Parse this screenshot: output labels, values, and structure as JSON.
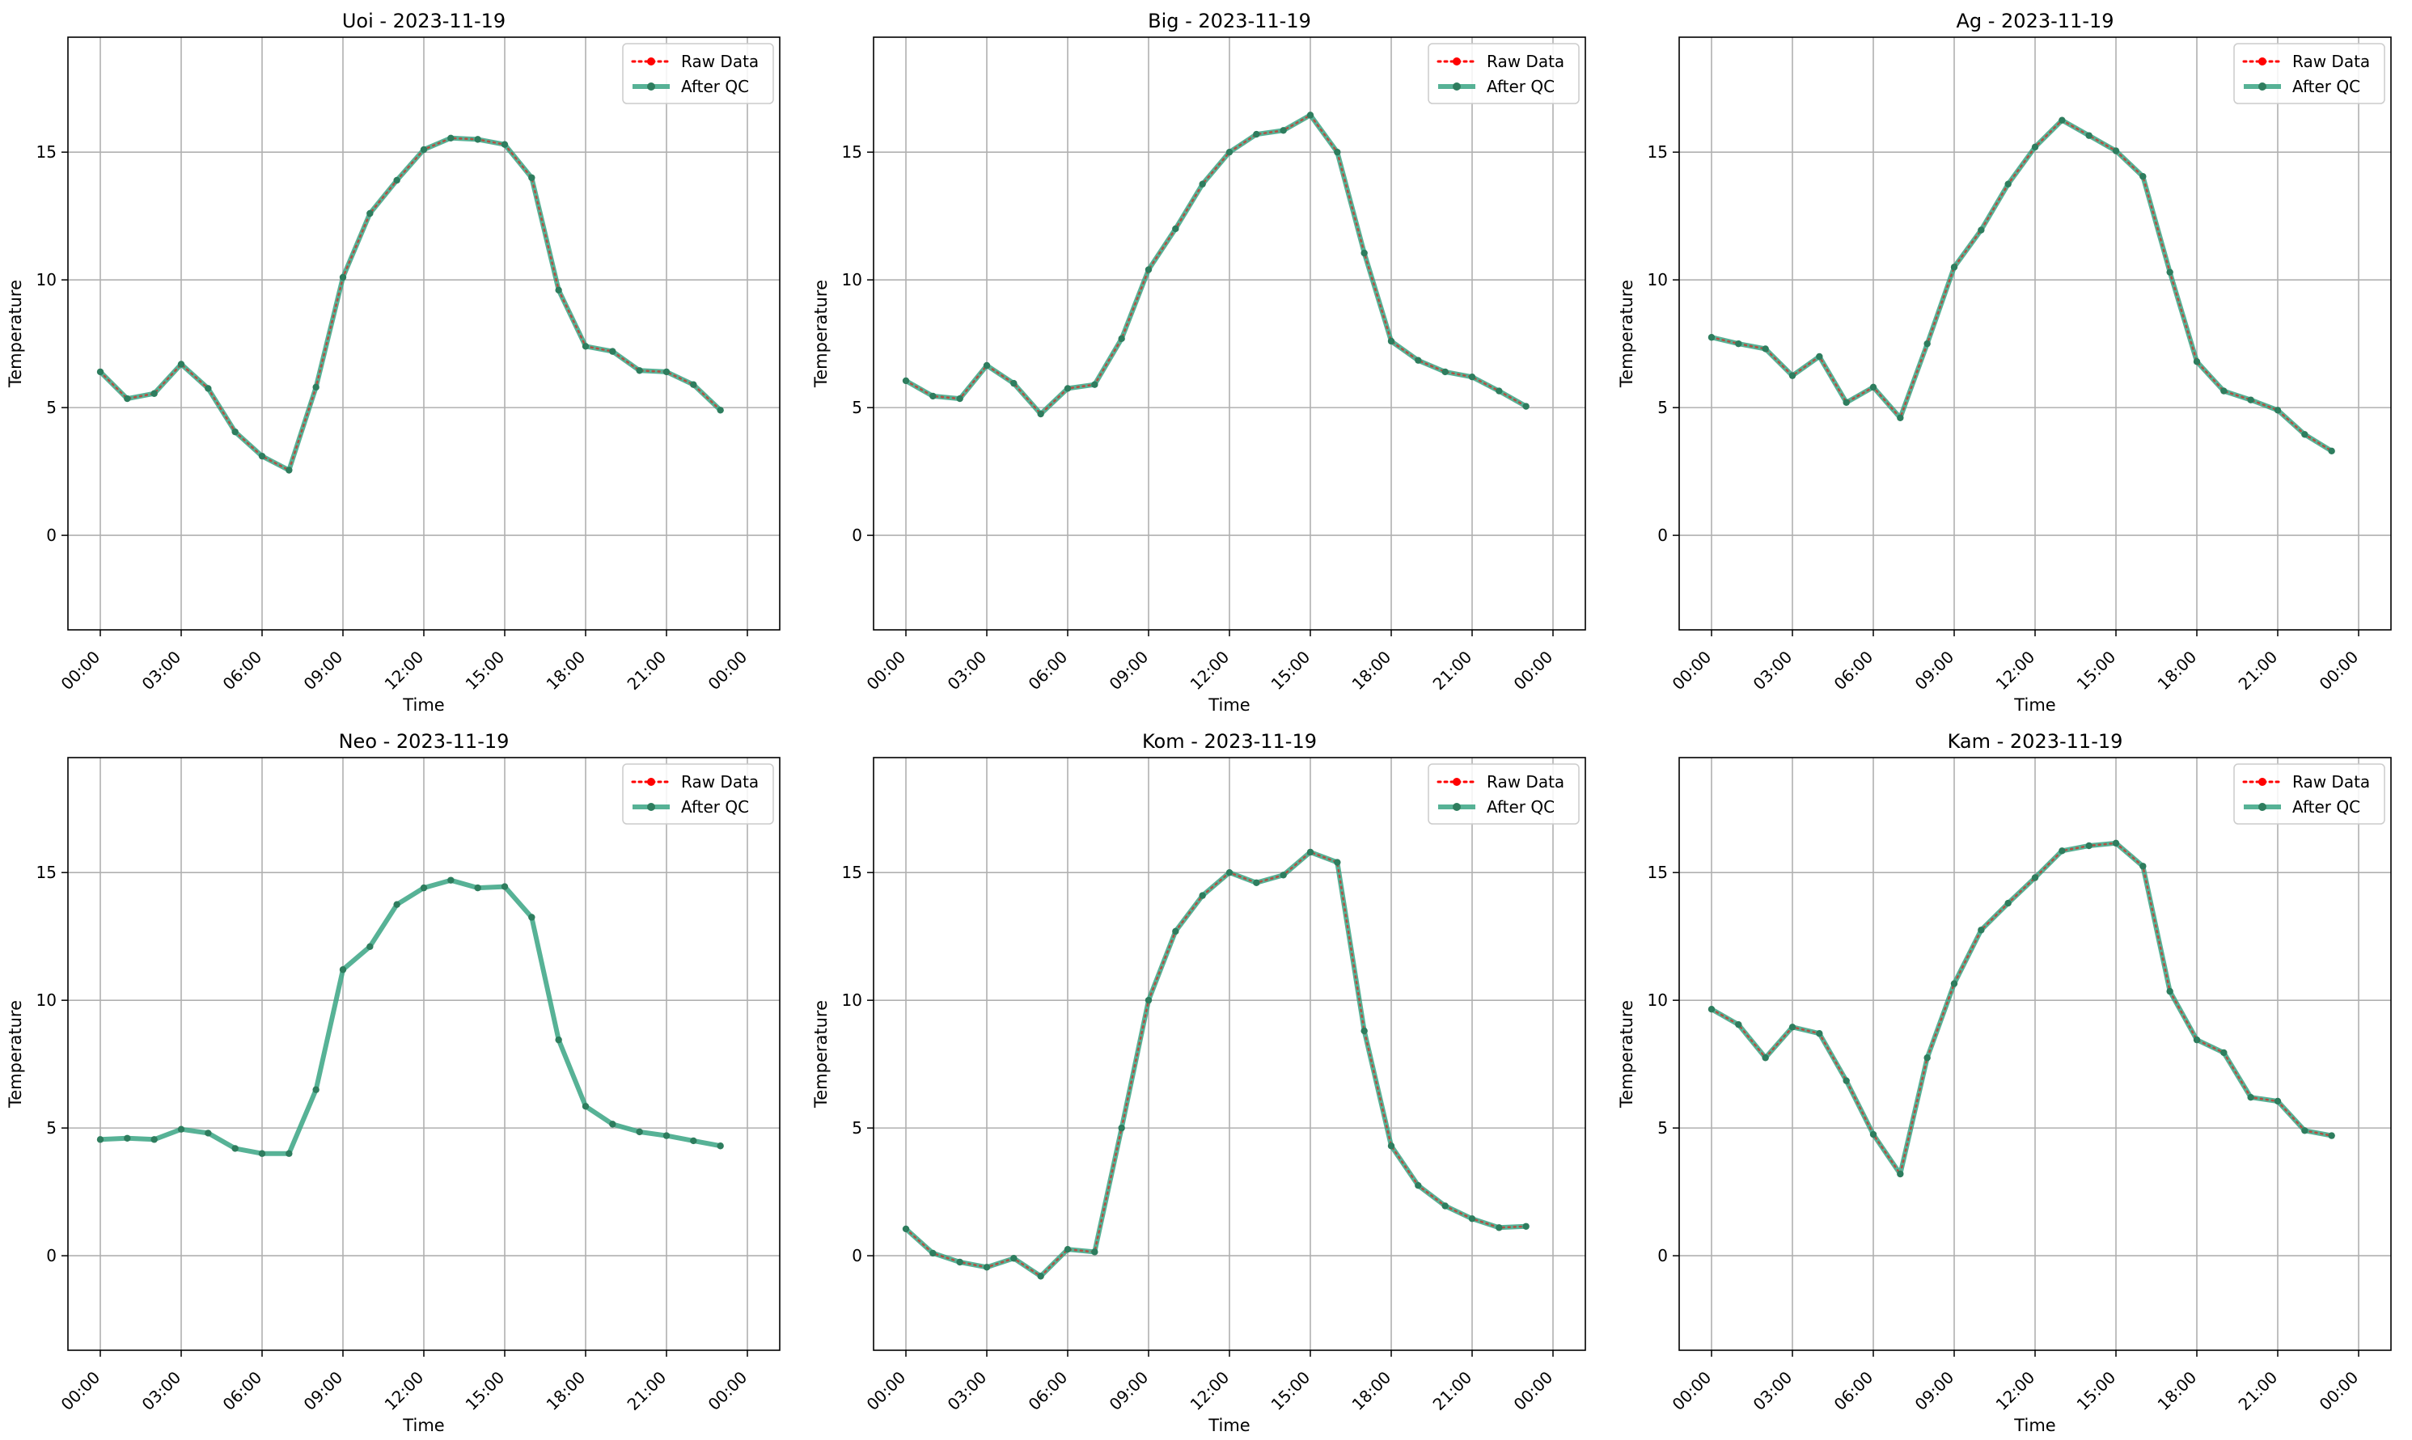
{
  "figure": {
    "colors": {
      "raw": "#ff0000",
      "qc": "#3aa584",
      "qc_marker": "#2e7d5e",
      "grid": "#b0b0b0",
      "axes": "#000000"
    }
  },
  "legend": {
    "raw_label": "Raw Data",
    "qc_label": "After QC",
    "placement": "top-right"
  },
  "chart_data": [
    {
      "type": "line",
      "title": "Uoi - 2023-11-19",
      "xlabel": "Time",
      "ylabel": "Temperature",
      "x_ticks": [
        "00:00",
        "03:00",
        "06:00",
        "09:00",
        "12:00",
        "15:00",
        "18:00",
        "21:00",
        "00:00"
      ],
      "y_ticks": [
        0,
        5,
        10,
        15
      ],
      "ylim": [
        -3.7,
        19.5
      ],
      "grid": true,
      "raw_visible": true,
      "series": [
        {
          "name": "After QC",
          "values": [
            6.4,
            5.35,
            5.55,
            6.7,
            5.75,
            4.05,
            3.1,
            2.55,
            5.8,
            10.1,
            12.6,
            13.9,
            15.1,
            15.55,
            15.5,
            15.3,
            14.0,
            9.6,
            7.4,
            7.2,
            6.45,
            6.4,
            5.9,
            4.9
          ]
        }
      ]
    },
    {
      "type": "line",
      "title": "Big - 2023-11-19",
      "xlabel": "Time",
      "ylabel": "Temperature",
      "x_ticks": [
        "00:00",
        "03:00",
        "06:00",
        "09:00",
        "12:00",
        "15:00",
        "18:00",
        "21:00",
        "00:00"
      ],
      "y_ticks": [
        0,
        5,
        10,
        15
      ],
      "ylim": [
        -3.7,
        19.5
      ],
      "grid": true,
      "raw_visible": true,
      "series": [
        {
          "name": "After QC",
          "values": [
            6.05,
            5.45,
            5.35,
            6.65,
            5.95,
            4.75,
            5.75,
            5.9,
            7.7,
            10.4,
            12.0,
            13.75,
            15.0,
            15.7,
            15.85,
            16.45,
            15.0,
            11.05,
            7.6,
            6.85,
            6.4,
            6.2,
            5.65,
            5.05
          ]
        }
      ]
    },
    {
      "type": "line",
      "title": "Ag - 2023-11-19",
      "xlabel": "Time",
      "ylabel": "Temperature",
      "x_ticks": [
        "00:00",
        "03:00",
        "06:00",
        "09:00",
        "12:00",
        "15:00",
        "18:00",
        "21:00",
        "00:00"
      ],
      "y_ticks": [
        0,
        5,
        10,
        15
      ],
      "ylim": [
        -3.7,
        19.5
      ],
      "grid": true,
      "raw_visible": true,
      "series": [
        {
          "name": "After QC",
          "values": [
            7.75,
            7.5,
            7.3,
            6.25,
            7.0,
            5.2,
            5.8,
            4.6,
            7.5,
            10.5,
            11.95,
            13.75,
            15.2,
            16.25,
            15.65,
            15.05,
            14.05,
            10.3,
            6.8,
            5.65,
            5.3,
            4.9,
            3.95,
            3.3
          ]
        }
      ]
    },
    {
      "type": "line",
      "title": "Neo - 2023-11-19",
      "xlabel": "Time",
      "ylabel": "Temperature",
      "x_ticks": [
        "00:00",
        "03:00",
        "06:00",
        "09:00",
        "12:00",
        "15:00",
        "18:00",
        "21:00",
        "00:00"
      ],
      "y_ticks": [
        0,
        5,
        10,
        15
      ],
      "ylim": [
        -3.7,
        19.5
      ],
      "grid": true,
      "raw_visible": false,
      "series": [
        {
          "name": "After QC",
          "values": [
            4.55,
            4.6,
            4.55,
            4.95,
            4.8,
            4.2,
            4.0,
            4.0,
            6.5,
            11.2,
            12.1,
            13.75,
            14.4,
            14.7,
            14.4,
            14.45,
            13.25,
            8.45,
            5.85,
            5.15,
            4.85,
            4.7,
            4.5,
            4.3
          ]
        }
      ]
    },
    {
      "type": "line",
      "title": "Kom - 2023-11-19",
      "xlabel": "Time",
      "ylabel": "Temperature",
      "x_ticks": [
        "00:00",
        "03:00",
        "06:00",
        "09:00",
        "12:00",
        "15:00",
        "18:00",
        "21:00",
        "00:00"
      ],
      "y_ticks": [
        0,
        5,
        10,
        15
      ],
      "ylim": [
        -3.7,
        19.5
      ],
      "grid": true,
      "raw_visible": true,
      "series": [
        {
          "name": "After QC",
          "values": [
            1.05,
            0.1,
            -0.25,
            -0.45,
            -0.1,
            -0.8,
            0.25,
            0.15,
            5.0,
            10.0,
            12.7,
            14.1,
            15.0,
            14.6,
            14.9,
            15.8,
            15.4,
            8.8,
            4.3,
            2.75,
            1.95,
            1.45,
            1.1,
            1.15
          ]
        }
      ]
    },
    {
      "type": "line",
      "title": "Kam - 2023-11-19",
      "xlabel": "Time",
      "ylabel": "Temperature",
      "x_ticks": [
        "00:00",
        "03:00",
        "06:00",
        "09:00",
        "12:00",
        "15:00",
        "18:00",
        "21:00",
        "00:00"
      ],
      "y_ticks": [
        0,
        5,
        10,
        15
      ],
      "ylim": [
        -3.7,
        19.5
      ],
      "grid": true,
      "raw_visible": true,
      "series": [
        {
          "name": "After QC",
          "values": [
            9.65,
            9.05,
            7.75,
            8.95,
            8.7,
            6.85,
            4.75,
            3.2,
            7.75,
            10.65,
            12.75,
            13.8,
            14.8,
            15.85,
            16.05,
            16.15,
            15.25,
            10.35,
            8.45,
            7.95,
            6.2,
            6.05,
            4.9,
            4.7
          ]
        }
      ]
    }
  ]
}
